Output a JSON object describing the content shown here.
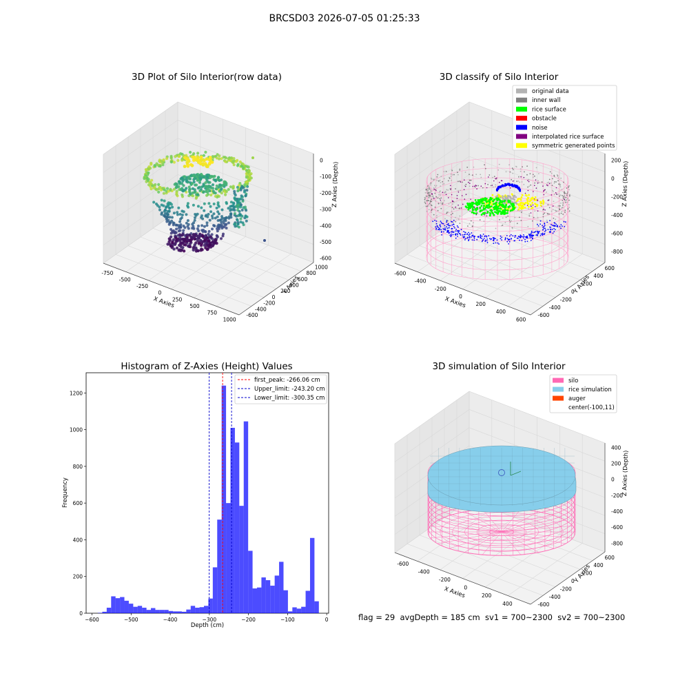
{
  "figure": {
    "suptitle": "BRCSD03 2026-07-05 01:25:33",
    "footer": "flag = 29  avgDepth = 185 cm  sv1 = 700~2300  sv2 = 700~2300"
  },
  "colors": {
    "pane": "#f2f2f2",
    "grid": "#d8d8d8",
    "silo": "#ff69b4",
    "rice_simulation": "#87ceeb",
    "auger": "#ff4500",
    "hist_bar": "#0000ff",
    "first_peak": "#ff0000",
    "limit": "#0000cc"
  },
  "chart_data": [
    {
      "type": "scatter3d",
      "title": "3D Plot of Silo Interior(row data)",
      "xlabel": "X Axies",
      "ylabel": "Y Axies",
      "zlabel": "Z Axies (Depth)",
      "x_ticks": [
        "-750",
        "-500",
        "-250",
        "0",
        "250",
        "500",
        "750",
        "1000"
      ],
      "y_ticks": [
        "-600",
        "-400",
        "-200",
        "0",
        "200",
        "400",
        "600",
        "800",
        "1000"
      ],
      "z_ticks": [
        "-600",
        "-500",
        "-400",
        "-300",
        "-200",
        "-100",
        "0"
      ],
      "xlim": [
        -800,
        1000
      ],
      "ylim": [
        -600,
        1000
      ],
      "zlim": [
        -650,
        0
      ],
      "colormap": "viridis"
    },
    {
      "type": "scatter3d",
      "title": "3D classify of Silo Interior",
      "xlabel": "X Axies",
      "ylabel": "Y Axies",
      "zlabel": "Z Axies (Depth)",
      "x_ticks": [
        "-600",
        "-400",
        "-200",
        "0",
        "200",
        "400",
        "600"
      ],
      "y_ticks": [
        "-600",
        "-400",
        "-200",
        "0",
        "200",
        "400",
        "600"
      ],
      "z_ticks": [
        "-800",
        "-600",
        "-400",
        "-200",
        "0",
        "200"
      ],
      "legend": [
        {
          "label": "original data",
          "color": "#b3b3b3"
        },
        {
          "label": "inner wall",
          "color": "#808080"
        },
        {
          "label": "rice surface",
          "color": "#00ff00"
        },
        {
          "label": "obstacle",
          "color": "#ff0000"
        },
        {
          "label": "noise",
          "color": "#0000ff"
        },
        {
          "label": "interpolated rice surface",
          "color": "#800080"
        },
        {
          "label": "symmetric generated points",
          "color": "#ffff00"
        }
      ],
      "legend_loc": "upper-right"
    },
    {
      "type": "bar",
      "title": "Histogram of Z-Axies (Height) Values",
      "xlabel": "Depth (cm)",
      "ylabel": "Frequency",
      "x_ticks": [
        -600,
        -500,
        -400,
        -300,
        -200,
        -100,
        0
      ],
      "y_ticks": [
        0,
        200,
        400,
        600,
        800,
        1000,
        1200
      ],
      "xlim": [
        -615,
        5
      ],
      "ylim": [
        0,
        1310
      ],
      "bin_edges_start": -585,
      "bin_width": 11.3,
      "values": [
        2,
        8,
        30,
        92,
        82,
        88,
        68,
        52,
        35,
        40,
        30,
        18,
        28,
        18,
        18,
        18,
        12,
        10,
        10,
        8,
        20,
        40,
        30,
        33,
        40,
        80,
        250,
        510,
        1240,
        600,
        1010,
        930,
        585,
        1045,
        340,
        135,
        140,
        195,
        180,
        150,
        205,
        280,
        125,
        10,
        32,
        25,
        35,
        122,
        410,
        65
      ],
      "lines": [
        {
          "label": "first_peak: -266.06 cm",
          "x": -266.06,
          "color": "#ff0000"
        },
        {
          "label": "Upper_limit: -243.20 cm",
          "x": -243.2,
          "color": "#0000cc"
        },
        {
          "label": "Lower_limit: -300.35 cm",
          "x": -300.35,
          "color": "#0000cc"
        }
      ],
      "legend_loc": "upper-right"
    },
    {
      "type": "surface3d",
      "title": "3D simulation of Silo Interior",
      "xlabel": "X Axies",
      "ylabel": "Y Axies",
      "zlabel": "Z Axies (Depth)",
      "x_ticks": [
        "-600",
        "-400",
        "-200",
        "0",
        "200",
        "400"
      ],
      "y_ticks": [
        "-600",
        "-400",
        "-200",
        "0",
        "200",
        "400",
        "600"
      ],
      "z_ticks": [
        "-800",
        "-600",
        "-400",
        "-200",
        "0",
        "200",
        "400"
      ],
      "legend": [
        {
          "label": "silo",
          "color": "#ff69b4"
        },
        {
          "label": "rice simulation",
          "color": "#87ceeb"
        },
        {
          "label": "auger",
          "color": "#ff4500"
        },
        {
          "label": "center(-100,11)",
          "color": ""
        }
      ],
      "legend_loc": "upper-right"
    }
  ]
}
